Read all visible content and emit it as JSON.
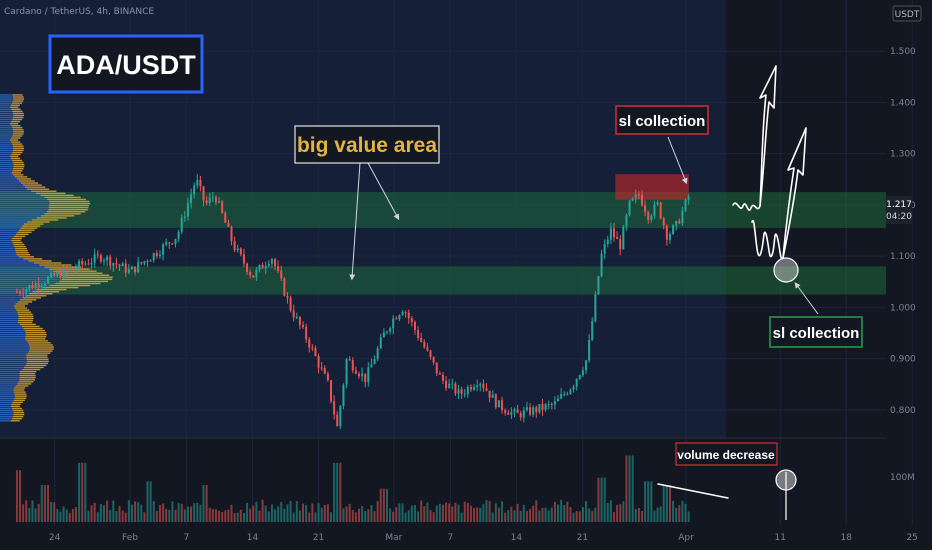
{
  "header": {
    "symbol_line": "Cardano / TetherUS, 4h, BINANCE",
    "currency": "USDT"
  },
  "title_box": {
    "text": "ADA/USDT"
  },
  "annotations": {
    "big_value_area": "big value area",
    "sl_collection_top": "sl collection",
    "sl_collection_bottom": "sl collection",
    "volume_decrease": "volume decrease"
  },
  "price_label": {
    "price": "1.217",
    "countdown": "04:20"
  },
  "colors": {
    "background": "#131722",
    "up": "#26a69a",
    "down": "#ef5350",
    "zone": "#1f7a3d",
    "title_border": "#2962ff",
    "sl_top_border": "#d32f2f",
    "sl_bottom_border": "#2e9e4f",
    "label_gold": "#e3b341"
  },
  "chart_data": {
    "type": "candlestick",
    "interval": "4h",
    "y_ticks": [
      0.8,
      0.9,
      1.0,
      1.1,
      1.2,
      1.3,
      1.4,
      1.5
    ],
    "y_tick_labels": [
      "0.800",
      "0.900",
      "1.000",
      "1.100",
      "1.200",
      "1.300",
      "1.400",
      "1.500"
    ],
    "ylim": [
      0.745,
      1.6
    ],
    "x_tick_labels": [
      "24",
      "Feb",
      "7",
      "14",
      "21",
      "Mar",
      "7",
      "14",
      "21",
      "Apr",
      "11",
      "18",
      "25"
    ],
    "x_tick_days": [
      -8,
      0,
      6,
      13,
      20,
      28,
      34,
      41,
      48,
      59,
      69,
      76,
      83
    ],
    "last_price": 1.217,
    "volume_axis_label": "100M",
    "zones": [
      {
        "low": 1.155,
        "high": 1.225
      },
      {
        "low": 1.025,
        "high": 1.08
      }
    ],
    "sl_zone": {
      "low": 1.21,
      "high": 1.26,
      "day_start": 51.5,
      "day_end": 59.3
    },
    "price_path": [
      [
        -12,
        1.03
      ],
      [
        -3,
        1.1
      ],
      [
        0,
        1.07
      ],
      [
        3,
        1.11
      ],
      [
        5,
        1.14
      ],
      [
        7,
        1.25
      ],
      [
        8,
        1.2
      ],
      [
        9,
        1.22
      ],
      [
        11,
        1.12
      ],
      [
        13,
        1.06
      ],
      [
        15,
        1.1
      ],
      [
        17,
        1.0
      ],
      [
        19,
        0.93
      ],
      [
        21,
        0.85
      ],
      [
        22,
        0.765
      ],
      [
        23,
        0.9
      ],
      [
        25,
        0.86
      ],
      [
        27,
        0.95
      ],
      [
        28,
        0.98
      ],
      [
        29,
        1.0
      ],
      [
        31,
        0.93
      ],
      [
        33,
        0.86
      ],
      [
        35,
        0.83
      ],
      [
        37,
        0.86
      ],
      [
        39,
        0.81
      ],
      [
        41,
        0.79
      ],
      [
        43,
        0.8
      ],
      [
        45,
        0.81
      ],
      [
        47,
        0.85
      ],
      [
        48.5,
        0.9
      ],
      [
        50,
        1.1
      ],
      [
        51,
        1.15
      ],
      [
        52,
        1.12
      ],
      [
        53,
        1.2
      ],
      [
        54,
        1.22
      ],
      [
        55,
        1.18
      ],
      [
        56,
        1.2
      ],
      [
        57,
        1.14
      ],
      [
        58,
        1.16
      ],
      [
        59.3,
        1.217
      ]
    ],
    "volume_marks": [
      {
        "day": -12,
        "value": 0.7
      },
      {
        "day": -9,
        "value": 0.5
      },
      {
        "day": -5,
        "value": 0.8
      },
      {
        "day": 2,
        "value": 0.55
      },
      {
        "day": 8,
        "value": 0.5
      },
      {
        "day": 22,
        "value": 0.8
      },
      {
        "day": 27,
        "value": 0.45
      },
      {
        "day": 50,
        "value": 0.6
      },
      {
        "day": 53,
        "value": 0.9
      },
      {
        "day": 55,
        "value": 0.55
      },
      {
        "day": 57,
        "value": 0.5
      }
    ]
  }
}
